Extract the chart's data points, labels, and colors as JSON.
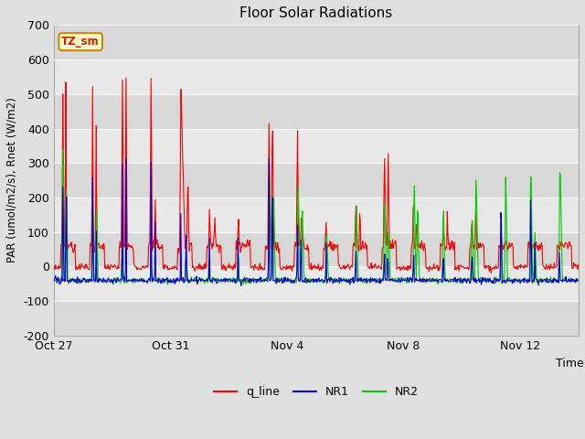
{
  "title": "Floor Solar Radiations",
  "xlabel": "Time",
  "ylabel": "PAR (umol/m2/s), Rnet (W/m2)",
  "ylim": [
    -200,
    700
  ],
  "yticks": [
    -200,
    -100,
    0,
    100,
    200,
    300,
    400,
    500,
    600,
    700
  ],
  "xtick_labels": [
    "Oct 27",
    "Oct 31",
    "Nov 4",
    "Nov 8",
    "Nov 12"
  ],
  "xtick_pos": [
    0,
    4,
    8,
    12,
    16
  ],
  "xlim": [
    0,
    18
  ],
  "outer_bg": "#e0e0e0",
  "plot_bg": "#f0f0f0",
  "band_light": "#e8e8e8",
  "band_dark": "#d8d8d8",
  "grid_color": "#ffffff",
  "line_colors": {
    "q_line": "#ff0000",
    "NR1": "#0000cc",
    "NR2": "#00cc00"
  },
  "legend_label": "TZ_sm",
  "legend_bg": "#ffffcc",
  "legend_border": "#cc8800",
  "figsize": [
    6.4,
    4.8
  ],
  "dpi": 100
}
